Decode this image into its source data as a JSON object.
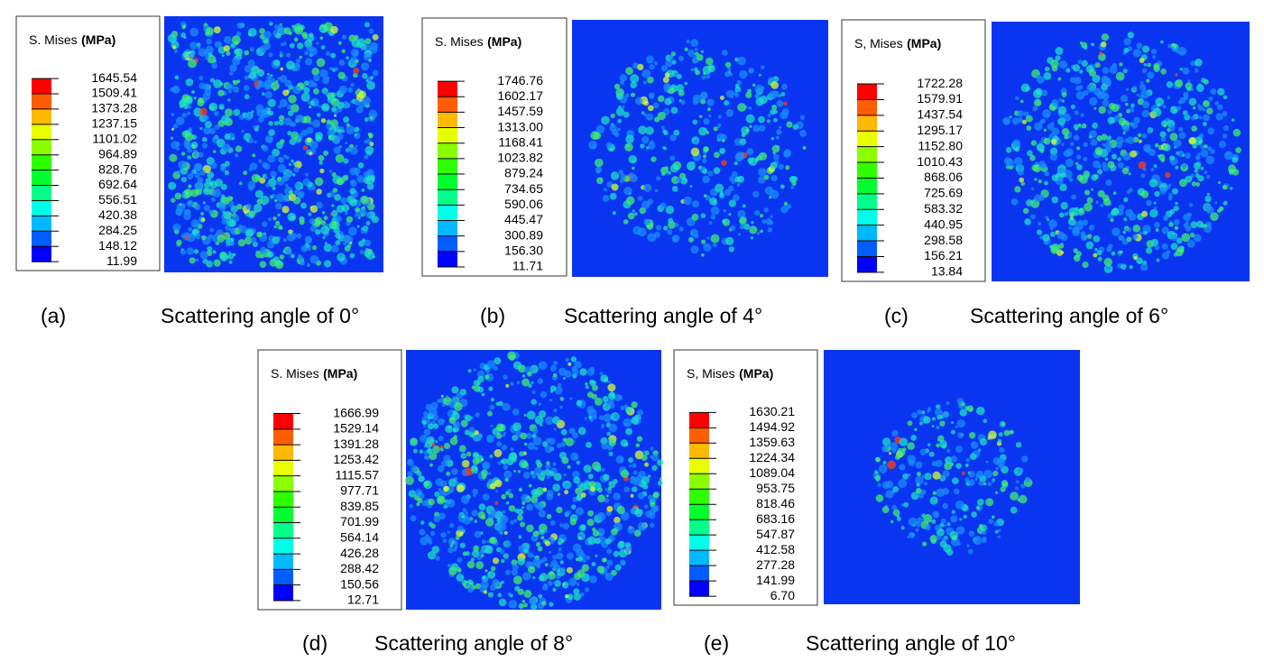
{
  "panels": [
    {
      "legend_title": "S. Mises",
      "legend_unit": "(MPa)",
      "legend_values": [
        "1645.54",
        "1509.41",
        "1373.28",
        "1237.15",
        "1101.02",
        "964.89",
        "828.76",
        "692.64",
        "556.51",
        "420.38",
        "284.25",
        "148.12",
        "11.99"
      ],
      "label": "(a)",
      "caption": "Scattering angle of 0°"
    },
    {
      "legend_title": "S. Mises",
      "legend_unit": "(MPa)",
      "legend_values": [
        "1746.76",
        "1602.17",
        "1457.59",
        "1313.00",
        "1168.41",
        "1023.82",
        "879.24",
        "734.65",
        "590.06",
        "445.47",
        "300.89",
        "156.30",
        "11.71"
      ],
      "label": "(b)",
      "caption": "Scattering angle of 4°"
    },
    {
      "legend_title": "S, Mises",
      "legend_unit": "(MPa)",
      "legend_values": [
        "1722.28",
        "1579.91",
        "1437.54",
        "1295.17",
        "1152.80",
        "1010.43",
        "868.06",
        "725.69",
        "583.32",
        "440.95",
        "298.58",
        "156.21",
        "13.84"
      ],
      "label": "(c)",
      "caption": "Scattering angle of 6°"
    },
    {
      "legend_title": "S. Mises",
      "legend_unit": "(MPa)",
      "legend_values": [
        "1666.99",
        "1529.14",
        "1391.28",
        "1253.42",
        "1115.57",
        "977.71",
        "839.85",
        "701.99",
        "564.14",
        "426.28",
        "288.42",
        "150.56",
        "12.71"
      ],
      "label": "(d)",
      "caption": "Scattering angle of 8°"
    },
    {
      "legend_title": "S, Mises",
      "legend_unit": "(MPa)",
      "legend_values": [
        "1630.21",
        "1494.92",
        "1359.63",
        "1224.34",
        "1089.04",
        "953.75",
        "818.46",
        "683.16",
        "547.87",
        "412.58",
        "277.28",
        "141.99",
        "6.70"
      ],
      "label": "(e)",
      "caption": "Scattering angle of 10°"
    }
  ]
}
